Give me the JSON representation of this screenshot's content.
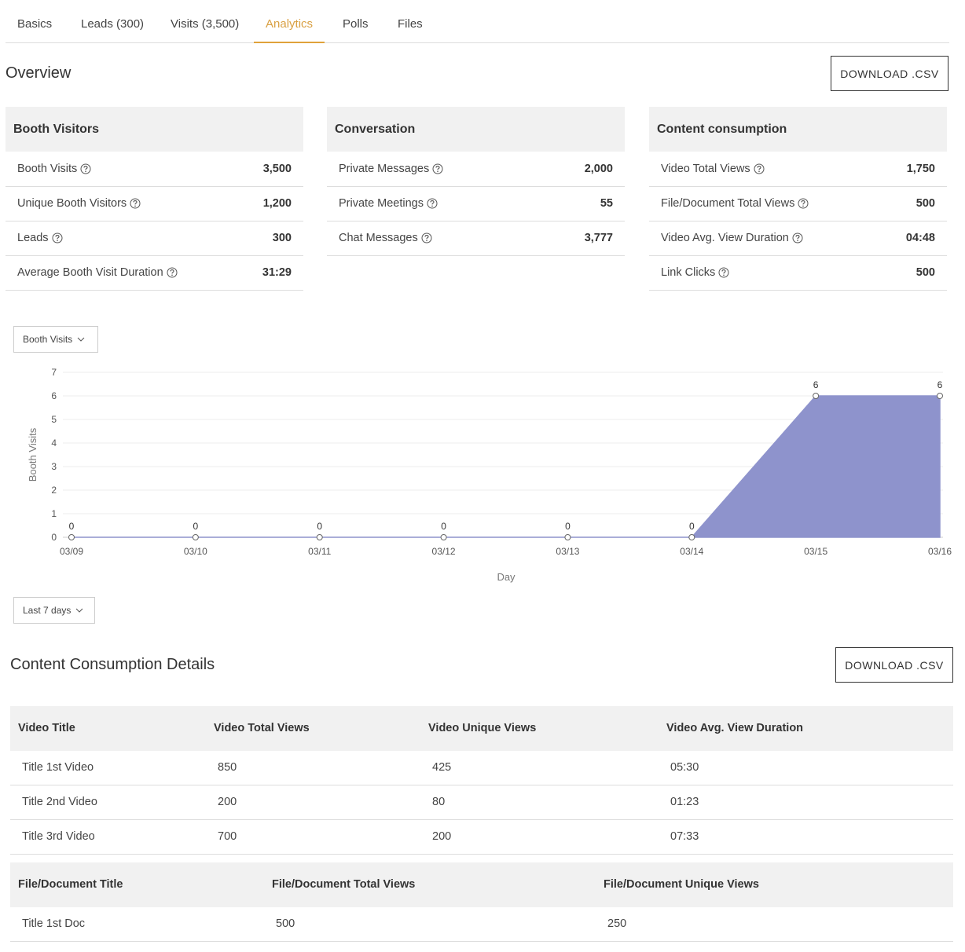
{
  "tabs": [
    "Basics",
    "Leads (300)",
    "Visits (3,500)",
    "Analytics",
    "Polls",
    "Files"
  ],
  "active_tab": 3,
  "overview": {
    "title": "Overview",
    "download": "DOWNLOAD .CSV",
    "cards": [
      {
        "title": "Booth Visitors",
        "rows": [
          {
            "label": "Booth Visits",
            "value": "3,500"
          },
          {
            "label": "Unique Booth Visitors",
            "value": "1,200"
          },
          {
            "label": "Leads",
            "value": "300"
          },
          {
            "label": "Average Booth Visit Duration",
            "value": "31:29"
          }
        ]
      },
      {
        "title": "Conversation",
        "rows": [
          {
            "label": "Private Messages",
            "value": "2,000"
          },
          {
            "label": "Private Meetings",
            "value": "55"
          },
          {
            "label": "Chat Messages",
            "value": "3,777"
          }
        ]
      },
      {
        "title": "Content consumption",
        "rows": [
          {
            "label": "Video Total Views",
            "value": "1,750"
          },
          {
            "label": "File/Document Total Views",
            "value": "500"
          },
          {
            "label": "Video Avg. View Duration",
            "value": "04:48"
          },
          {
            "label": "Link Clicks",
            "value": "500"
          }
        ]
      }
    ]
  },
  "metric_select": "Booth Visits",
  "range_select": "Last 7 days",
  "chart_data": {
    "type": "area",
    "categories": [
      "03/09",
      "03/10",
      "03/11",
      "03/12",
      "03/13",
      "03/14",
      "03/15",
      "03/16"
    ],
    "values": [
      0,
      0,
      0,
      0,
      0,
      0,
      6,
      6
    ],
    "color": "#8e93cc",
    "ylim": [
      0,
      7
    ],
    "yticks": [
      0,
      1,
      2,
      3,
      4,
      5,
      6,
      7
    ],
    "grid": true,
    "y_label": "Booth Visits",
    "x_label": "Day"
  },
  "details": {
    "title": "Content Consumption Details",
    "download": "DOWNLOAD .CSV",
    "video_table": {
      "headers": [
        "Video Title",
        "Video Total Views",
        "Video Unique Views",
        "Video Avg. View Duration"
      ],
      "rows": [
        [
          "Title 1st Video",
          "850",
          "425",
          "05:30"
        ],
        [
          "Title 2nd Video",
          "200",
          "80",
          "01:23"
        ],
        [
          "Title 3rd Video",
          "700",
          "200",
          "07:33"
        ]
      ]
    },
    "doc_table": {
      "headers": [
        "File/Document Title",
        "File/Document Total Views",
        "File/Document Unique Views"
      ],
      "rows": [
        [
          "Title 1st Doc",
          "500",
          "250"
        ]
      ]
    }
  }
}
